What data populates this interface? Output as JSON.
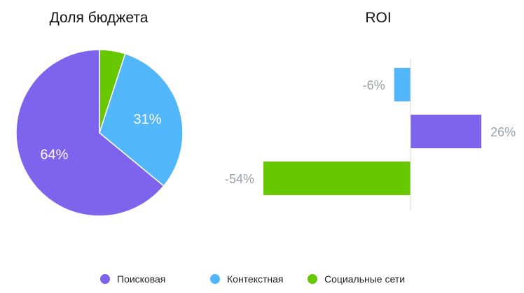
{
  "chart_data": [
    {
      "type": "pie",
      "title": "Доля бюджета",
      "categories": [
        "Поисковая",
        "Контекстная",
        "Социальные сети"
      ],
      "values": [
        64,
        31,
        5
      ],
      "value_labels": [
        "64%",
        "31%",
        ""
      ],
      "colors": [
        "#7e63ec",
        "#52b6fb",
        "#67c800"
      ],
      "start_angle": "12 o'clock, clockwise, smallest slice first"
    },
    {
      "type": "bar",
      "orientation": "horizontal",
      "title": "ROI",
      "categories": [
        "Контекстная",
        "Поисковая",
        "Социальные сети"
      ],
      "values": [
        -6,
        26,
        -54
      ],
      "value_labels": [
        "-6%",
        "26%",
        "-54%"
      ],
      "colors": [
        "#52b6fb",
        "#7e63ec",
        "#67c800"
      ],
      "xlim": [
        -54,
        26
      ],
      "grid": false
    }
  ],
  "legend": {
    "placement": "bottom",
    "items": [
      {
        "label": "Поисковая",
        "color": "#7e63ec"
      },
      {
        "label": "Контекстная",
        "color": "#52b6fb"
      },
      {
        "label": "Социальные сети",
        "color": "#67c800"
      }
    ]
  }
}
